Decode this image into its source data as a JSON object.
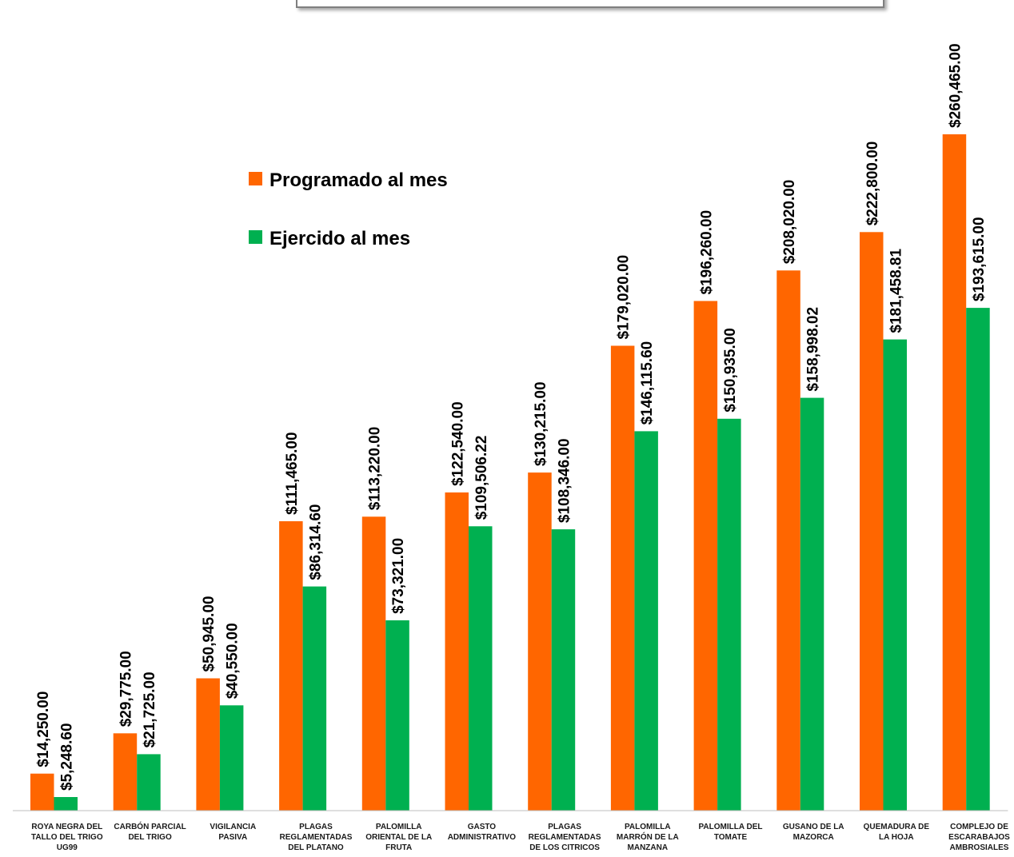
{
  "chart_data": {
    "type": "bar",
    "title": "",
    "xlabel": "",
    "ylabel": "",
    "ylim": [
      0,
      260465
    ],
    "grid": false,
    "legend_position": "left-center",
    "categories": [
      [
        "ROYA NEGRA DEL",
        "TALLO DEL TRIGO",
        "UG99"
      ],
      [
        "CARBÓN PARCIAL",
        "DEL TRIGO"
      ],
      [
        "VIGILANCIA",
        "PASIVA"
      ],
      [
        "PLAGAS",
        "REGLAMENTADAS",
        "DEL PLATANO"
      ],
      [
        "PALOMILLA",
        "ORIENTAL DE LA",
        "FRUTA"
      ],
      [
        "GASTO",
        "ADMINISTRATIVO"
      ],
      [
        "PLAGAS",
        "REGLAMENTADAS",
        "DE LOS CITRICOS"
      ],
      [
        "PALOMILLA",
        "MARRÓN DE LA",
        "MANZANA"
      ],
      [
        "PALOMILLA DEL",
        "TOMATE"
      ],
      [
        "GUSANO DE LA",
        "MAZORCA"
      ],
      [
        "QUEMADURA DE",
        "LA HOJA"
      ],
      [
        "COMPLEJO DE",
        "ESCARABAJOS",
        "AMBROSIALES"
      ]
    ],
    "series": [
      {
        "name": "Programado al mes",
        "color": "#ff6600",
        "values": [
          14250.0,
          29775.0,
          50945.0,
          111465.0,
          113220.0,
          122540.0,
          130215.0,
          179020.0,
          196260.0,
          208020.0,
          222800.0,
          260465.0
        ],
        "labels": [
          "$14,250.00",
          "$29,775.00",
          "$50,945.00",
          "$111,465.00",
          "$113,220.00",
          "$122,540.00",
          "$130,215.00",
          "$179,020.00",
          "$196,260.00",
          "$208,020.00",
          "$222,800.00",
          "$260,465.00"
        ]
      },
      {
        "name": "Ejercido al mes",
        "color": "#00b050",
        "values": [
          5248.6,
          21725.0,
          40550.0,
          86314.6,
          73321.0,
          109506.22,
          108346.0,
          146115.6,
          150935.0,
          158998.02,
          181458.81,
          193615.0
        ],
        "labels": [
          "$5,248.60",
          "$21,725.00",
          "$40,550.00",
          "$86,314.60",
          "$73,321.00",
          "$109,506.22",
          "$108,346.00",
          "$146,115.60",
          "$150,935.00",
          "$158,998.02",
          "$181,458.81",
          "$193,615.00"
        ]
      }
    ]
  }
}
